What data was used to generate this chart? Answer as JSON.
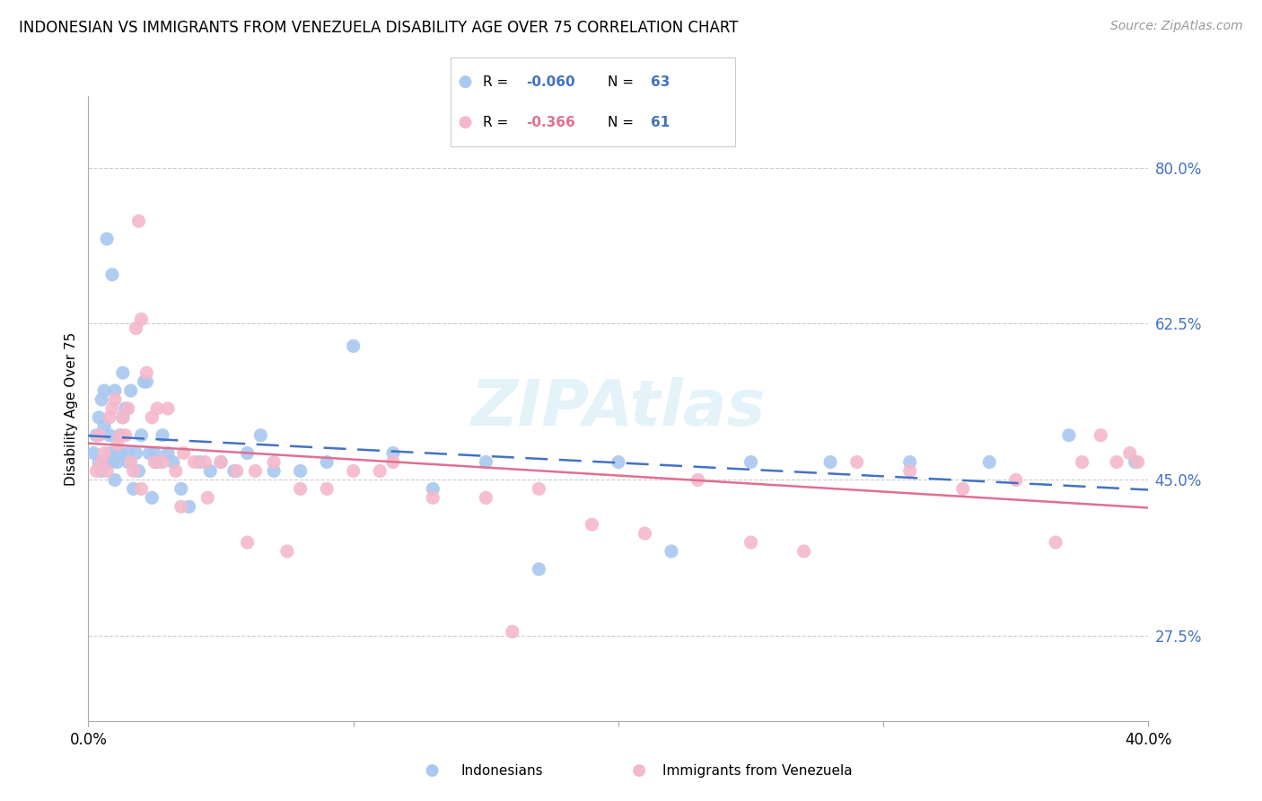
{
  "title": "INDONESIAN VS IMMIGRANTS FROM VENEZUELA DISABILITY AGE OVER 75 CORRELATION CHART",
  "source": "Source: ZipAtlas.com",
  "ylabel": "Disability Age Over 75",
  "y_ticks": [
    0.275,
    0.45,
    0.625,
    0.8
  ],
  "y_tick_labels": [
    "27.5%",
    "45.0%",
    "62.5%",
    "80.0%"
  ],
  "x_min": 0.0,
  "x_max": 0.4,
  "y_min": 0.18,
  "y_max": 0.88,
  "r_indonesian": -0.06,
  "n_indonesian": 63,
  "r_venezuela": -0.366,
  "n_venezuela": 61,
  "indonesian_color": "#a8c8f0",
  "venezuela_color": "#f5b8cb",
  "indonesian_line_color": "#4472c4",
  "venezuela_line_color": "#e07090",
  "indonesian_scatter_x": [
    0.002,
    0.003,
    0.004,
    0.004,
    0.005,
    0.005,
    0.006,
    0.006,
    0.007,
    0.007,
    0.008,
    0.008,
    0.009,
    0.009,
    0.01,
    0.01,
    0.011,
    0.011,
    0.012,
    0.012,
    0.013,
    0.013,
    0.014,
    0.015,
    0.015,
    0.016,
    0.017,
    0.018,
    0.019,
    0.02,
    0.021,
    0.022,
    0.023,
    0.024,
    0.025,
    0.026,
    0.028,
    0.03,
    0.032,
    0.035,
    0.038,
    0.042,
    0.046,
    0.05,
    0.055,
    0.06,
    0.065,
    0.07,
    0.08,
    0.09,
    0.1,
    0.115,
    0.13,
    0.15,
    0.17,
    0.2,
    0.22,
    0.25,
    0.28,
    0.31,
    0.34,
    0.37,
    0.395
  ],
  "indonesian_scatter_y": [
    0.48,
    0.5,
    0.47,
    0.52,
    0.46,
    0.54,
    0.55,
    0.51,
    0.47,
    0.72,
    0.48,
    0.5,
    0.47,
    0.68,
    0.45,
    0.55,
    0.48,
    0.47,
    0.5,
    0.48,
    0.52,
    0.57,
    0.53,
    0.48,
    0.47,
    0.55,
    0.44,
    0.48,
    0.46,
    0.5,
    0.56,
    0.56,
    0.48,
    0.43,
    0.48,
    0.47,
    0.5,
    0.48,
    0.47,
    0.44,
    0.42,
    0.47,
    0.46,
    0.47,
    0.46,
    0.48,
    0.5,
    0.46,
    0.46,
    0.47,
    0.6,
    0.48,
    0.44,
    0.47,
    0.35,
    0.47,
    0.37,
    0.47,
    0.47,
    0.47,
    0.47,
    0.5,
    0.47
  ],
  "venezuela_scatter_x": [
    0.003,
    0.004,
    0.005,
    0.006,
    0.007,
    0.008,
    0.009,
    0.01,
    0.011,
    0.012,
    0.013,
    0.014,
    0.015,
    0.016,
    0.017,
    0.018,
    0.019,
    0.02,
    0.022,
    0.024,
    0.026,
    0.028,
    0.03,
    0.033,
    0.036,
    0.04,
    0.044,
    0.05,
    0.056,
    0.063,
    0.07,
    0.08,
    0.09,
    0.1,
    0.115,
    0.13,
    0.15,
    0.17,
    0.19,
    0.21,
    0.23,
    0.25,
    0.27,
    0.29,
    0.31,
    0.33,
    0.35,
    0.365,
    0.375,
    0.382,
    0.388,
    0.393,
    0.396,
    0.02,
    0.025,
    0.035,
    0.045,
    0.06,
    0.075,
    0.11,
    0.16
  ],
  "venezuela_scatter_y": [
    0.46,
    0.5,
    0.47,
    0.48,
    0.46,
    0.52,
    0.53,
    0.54,
    0.49,
    0.5,
    0.52,
    0.5,
    0.53,
    0.47,
    0.46,
    0.62,
    0.74,
    0.63,
    0.57,
    0.52,
    0.53,
    0.47,
    0.53,
    0.46,
    0.48,
    0.47,
    0.47,
    0.47,
    0.46,
    0.46,
    0.47,
    0.44,
    0.44,
    0.46,
    0.47,
    0.43,
    0.43,
    0.44,
    0.4,
    0.39,
    0.45,
    0.38,
    0.37,
    0.47,
    0.46,
    0.44,
    0.45,
    0.38,
    0.47,
    0.5,
    0.47,
    0.48,
    0.47,
    0.44,
    0.47,
    0.42,
    0.43,
    0.38,
    0.37,
    0.46,
    0.28
  ]
}
